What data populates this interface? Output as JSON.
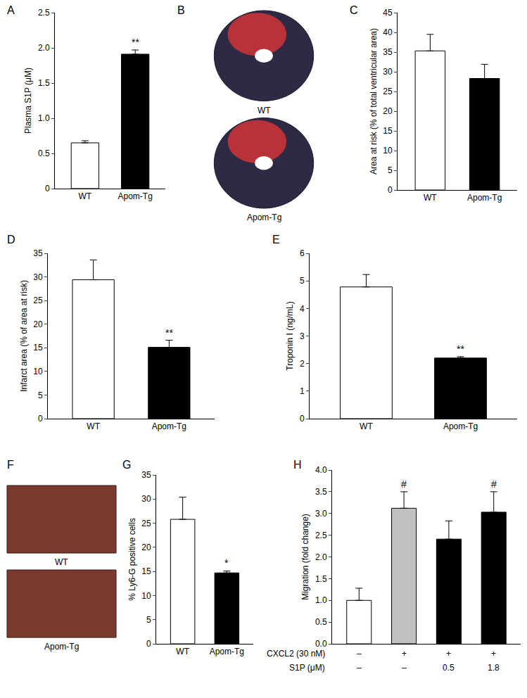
{
  "chart_data": [
    {
      "title": "A",
      "type": "bar",
      "categories": [
        "WT",
        "Apom-Tg"
      ],
      "values": [
        0.65,
        1.91
      ],
      "errors": [
        0.03,
        0.06
      ],
      "colors": [
        "#ffffff",
        "#000000"
      ],
      "ylabel": "Plasma S1P (μM)",
      "ylim": [
        0,
        2.5
      ],
      "yticks": [
        0,
        0.5,
        {
          "value": 1,
          "label": "1.0"
        },
        1.5,
        {
          "value": 2,
          "label": "2.0"
        },
        2.5
      ],
      "annotations": [
        {
          "x": 1,
          "text": "**"
        }
      ]
    },
    {
      "title": "B",
      "type": "image",
      "labels": [
        "WT",
        "Apom-Tg"
      ]
    },
    {
      "title": "C",
      "type": "bar",
      "categories": [
        "WT",
        "Apom-Tg"
      ],
      "values": [
        35.3,
        28.3
      ],
      "errors": [
        4.2,
        3.6
      ],
      "colors": [
        "#ffffff",
        "#000000"
      ],
      "ylabel": "Area at risk (% of total ventricular area)",
      "ylim": [
        0,
        45
      ],
      "yticks": [
        0,
        5,
        10,
        15,
        20,
        25,
        30,
        35,
        40,
        45
      ]
    },
    {
      "title": "D",
      "type": "bar",
      "categories": [
        "WT",
        "Apom-Tg"
      ],
      "values": [
        29.4,
        15.1
      ],
      "errors": [
        4.2,
        1.5
      ],
      "colors": [
        "#ffffff",
        "#000000"
      ],
      "ylabel": "Infarct area (% of area at risk)",
      "ylim": [
        0,
        35
      ],
      "yticks": [
        0,
        5,
        10,
        15,
        20,
        25,
        30,
        35
      ],
      "annotations": [
        {
          "x": 1,
          "text": "**"
        }
      ]
    },
    {
      "title": "E",
      "type": "bar",
      "categories": [
        "WT",
        "Apom-Tg"
      ],
      "values": [
        4.78,
        2.2
      ],
      "errors": [
        0.45,
        0.05
      ],
      "colors": [
        "#ffffff",
        "#000000"
      ],
      "ylabel": "Troponin I (ng/mL)",
      "ylim": [
        0,
        6
      ],
      "yticks": [
        0,
        1,
        2,
        3,
        4,
        5,
        6
      ],
      "annotations": [
        {
          "x": 1,
          "text": "**"
        }
      ]
    },
    {
      "title": "F",
      "type": "image",
      "labels": [
        "WT",
        "Apom-Tg"
      ]
    },
    {
      "title": "G",
      "type": "bar",
      "categories": [
        "WT",
        "Apom-Tg"
      ],
      "values": [
        25.8,
        14.7
      ],
      "errors": [
        4.6,
        0.4
      ],
      "colors": [
        "#ffffff",
        "#000000"
      ],
      "ylabel": "% Ly6-G positive cells",
      "ylim": [
        0,
        35
      ],
      "yticks": [
        0,
        5,
        10,
        15,
        20,
        25,
        30,
        35
      ],
      "annotations": [
        {
          "x": 1,
          "text": "*"
        }
      ]
    },
    {
      "title": "H",
      "type": "bar",
      "values": [
        1.0,
        3.12,
        2.41,
        3.03
      ],
      "errors": [
        0.28,
        0.38,
        0.42,
        0.47
      ],
      "colors": [
        "#ffffff",
        "#c0c0c0",
        "#000000",
        "#000000"
      ],
      "ylabel": "Migration (fold change)",
      "ylim": [
        0,
        4
      ],
      "yticks": [
        {
          "value": 0,
          "label": "0.0"
        },
        0.5,
        {
          "value": 1,
          "label": "1.0"
        },
        1.5,
        {
          "value": 2,
          "label": "2.0"
        },
        2.5,
        {
          "value": 3,
          "label": "3.0"
        },
        3.5,
        {
          "value": 4,
          "label": "4.0"
        }
      ],
      "x_table": [
        {
          "label": "CXCL2 (30 nM)",
          "values": [
            "–",
            "+",
            "+",
            "+"
          ]
        },
        {
          "label": "S1P (μM)",
          "values": [
            "–",
            "–",
            "0.5",
            "1.8"
          ]
        }
      ],
      "annotations": [
        {
          "x": 1,
          "text": "#"
        },
        {
          "x": 3,
          "text": "#"
        }
      ]
    }
  ]
}
